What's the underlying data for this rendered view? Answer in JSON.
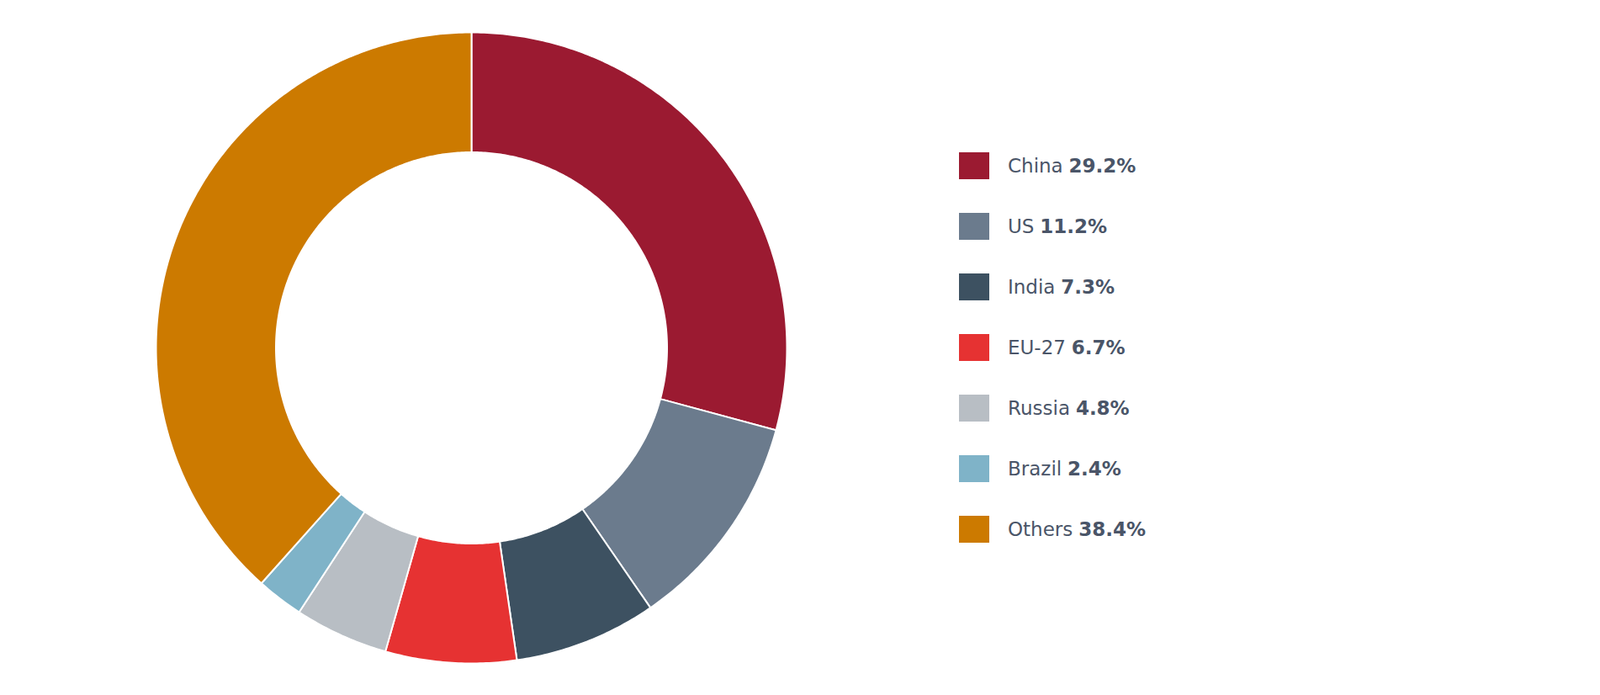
{
  "chart_data": {
    "type": "donut",
    "categories": [
      "China",
      "US",
      "India",
      "EU-27",
      "Russia",
      "Brazil",
      "Others"
    ],
    "values": [
      29.2,
      11.2,
      7.3,
      6.7,
      4.8,
      2.4,
      38.4
    ],
    "value_labels": [
      "29.2%",
      "11.2%",
      "7.3%",
      "6.7%",
      "4.8%",
      "2.4%",
      "38.4%"
    ],
    "colors": [
      "#9b1a31",
      "#6b7b8d",
      "#3d5161",
      "#e63232",
      "#b8bec4",
      "#7fb3c8",
      "#cc7a00"
    ],
    "legend": "right"
  }
}
